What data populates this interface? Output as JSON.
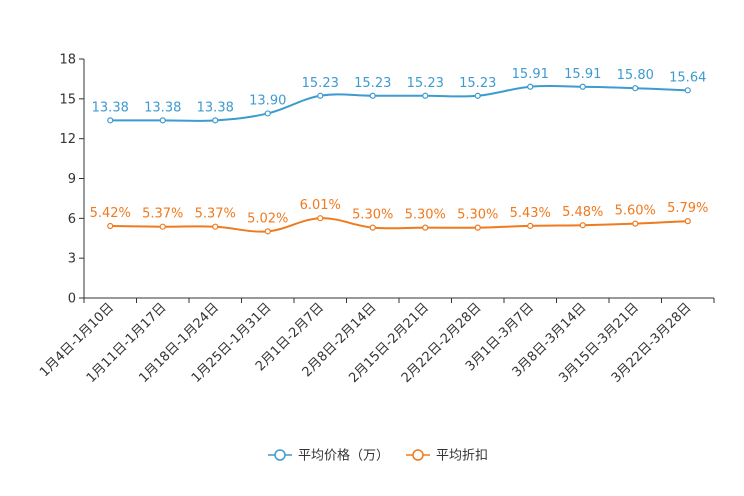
{
  "chart_data": {
    "type": "line",
    "title": "",
    "xlabel": "",
    "ylabel": "",
    "ylim": [
      0,
      18
    ],
    "yticks": [
      0,
      3,
      6,
      9,
      12,
      15,
      18
    ],
    "ytick_labels": [
      "0",
      "3",
      "6",
      "9",
      "12",
      "15",
      "18"
    ],
    "grid": false,
    "legend_position": "bottom",
    "categories": [
      "1月4日-1月10日",
      "1月11日-1月17日",
      "1月18日-1月24日",
      "1月25日-1月31日",
      "2月1日-2月7日",
      "2月8日-2月14日",
      "2月15日-2月21日",
      "2月22日-2月28日",
      "3月1日-3月7日",
      "3月8日-3月14日",
      "3月15日-3月21日",
      "3月22日-3月28日"
    ],
    "series": [
      {
        "name": "平均价格（万）",
        "color": "#3d9bd0",
        "values": [
          13.38,
          13.38,
          13.38,
          13.9,
          15.23,
          15.23,
          15.23,
          15.23,
          15.91,
          15.91,
          15.8,
          15.64
        ],
        "labels": [
          "13.38",
          "13.38",
          "13.38",
          "13.90",
          "15.23",
          "15.23",
          "15.23",
          "15.23",
          "15.91",
          "15.91",
          "15.80",
          "15.64"
        ]
      },
      {
        "name": "平均折扣",
        "color": "#f07a1e",
        "values": [
          5.42,
          5.37,
          5.37,
          5.02,
          6.01,
          5.3,
          5.3,
          5.3,
          5.43,
          5.48,
          5.6,
          5.79
        ],
        "labels": [
          "5.42%",
          "5.37%",
          "5.37%",
          "5.02%",
          "6.01%",
          "5.30%",
          "5.30%",
          "5.30%",
          "5.43%",
          "5.48%",
          "5.60%",
          "5.79%"
        ]
      }
    ]
  }
}
